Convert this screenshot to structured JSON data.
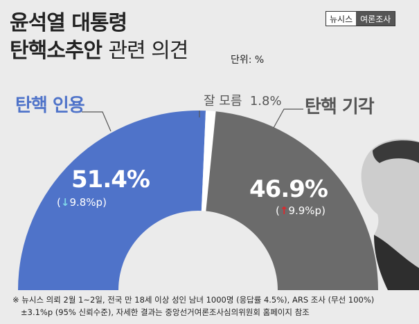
{
  "brand": {
    "name": "뉴시스",
    "section": "여론조사"
  },
  "chart_data": {
    "type": "pie",
    "title_line1": "윤석열 대통령",
    "title_line2_bold": "탄핵소추안",
    "title_line2_rest": "관련 의견",
    "unit": "단위: %",
    "slices": [
      {
        "label": "탄핵 인용",
        "value": 51.4,
        "value_text": "51.4%",
        "change_text": "9.8%p",
        "change_dir": "down",
        "color": "#4f73c9"
      },
      {
        "label": "잘 모름",
        "value": 1.8,
        "value_text": "1.8%",
        "color": "#ffffff"
      },
      {
        "label": "탄핵 기각",
        "value": 46.9,
        "value_text": "46.9%",
        "change_text": "9.9%p",
        "change_dir": "up",
        "color": "#6b6b6b"
      }
    ]
  },
  "footer": {
    "line1": "※ 뉴시스 의뢰 2월 1~2일, 전국 만 18세 이상 성인 남녀 1000명 (응답률 4.5%), ARS 조사 (무선 100%)",
    "line2": "±3.1%p (95% 신뢰수준), 자세한 결과는 중앙선거여론조사심의위원회 홈페이지 참조"
  }
}
